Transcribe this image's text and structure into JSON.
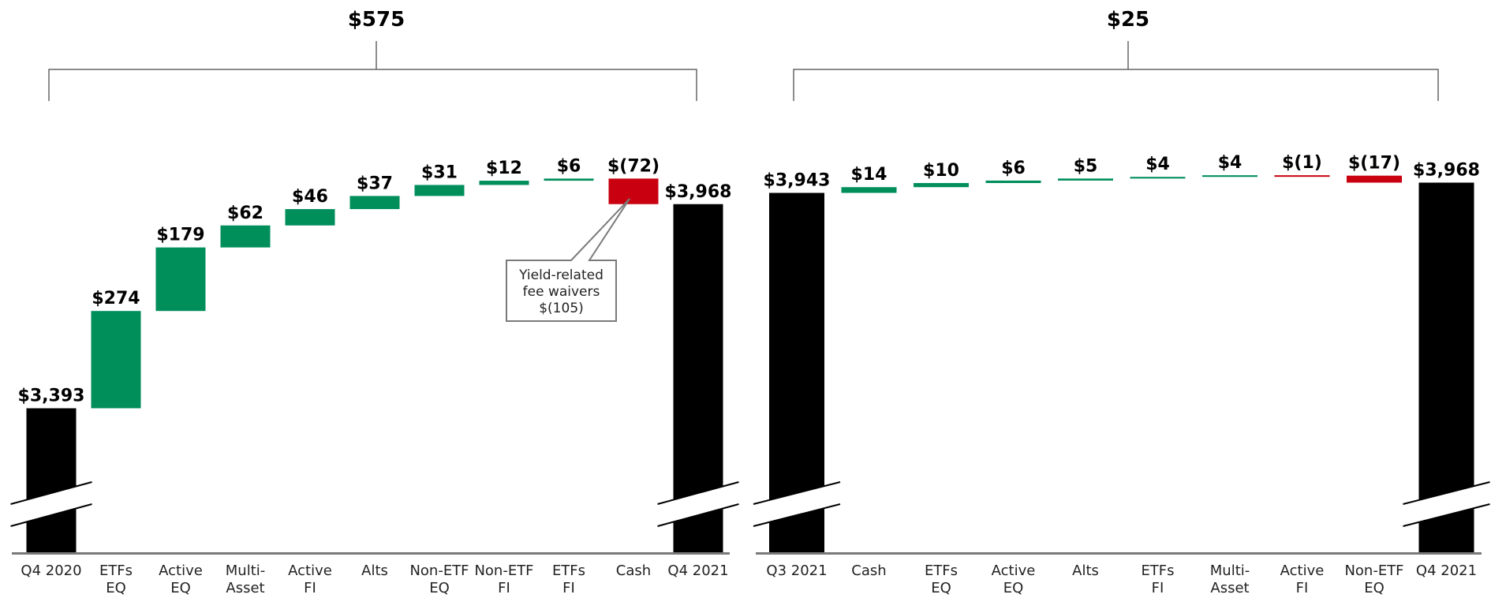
{
  "colors": {
    "positive": "#008e5b",
    "negative": "#c8000f",
    "total": "#000000",
    "axis": "#7a7a7a",
    "bracket": "#666666"
  },
  "chart_data": [
    {
      "type": "waterfall",
      "total_change_label": "$575",
      "items": [
        {
          "category": [
            "Q4 2020"
          ],
          "kind": "total",
          "value": 3393,
          "label": "$3,393",
          "axis_break": true
        },
        {
          "category": [
            "ETFs",
            "EQ"
          ],
          "kind": "delta",
          "value": 274,
          "label": "$274"
        },
        {
          "category": [
            "Active",
            "EQ"
          ],
          "kind": "delta",
          "value": 179,
          "label": "$179"
        },
        {
          "category": [
            "Multi-",
            "Asset"
          ],
          "kind": "delta",
          "value": 62,
          "label": "$62"
        },
        {
          "category": [
            "Active",
            "FI"
          ],
          "kind": "delta",
          "value": 46,
          "label": "$46"
        },
        {
          "category": [
            "Alts"
          ],
          "kind": "delta",
          "value": 37,
          "label": "$37"
        },
        {
          "category": [
            "Non-ETF",
            "EQ"
          ],
          "kind": "delta",
          "value": 31,
          "label": "$31"
        },
        {
          "category": [
            "Non-ETF",
            "FI"
          ],
          "kind": "delta",
          "value": 12,
          "label": "$12"
        },
        {
          "category": [
            "ETFs",
            "FI"
          ],
          "kind": "delta",
          "value": 6,
          "label": "$6"
        },
        {
          "category": [
            "Cash"
          ],
          "kind": "delta",
          "value": -72,
          "label": "$(72)"
        },
        {
          "category": [
            "Q4 2021"
          ],
          "kind": "total",
          "value": 3968,
          "label": "$3,968",
          "axis_break": true
        }
      ],
      "callout": {
        "target_category": "Cash",
        "lines": [
          "Yield-related",
          "fee waivers",
          "$(105)"
        ]
      }
    },
    {
      "type": "waterfall",
      "total_change_label": "$25",
      "items": [
        {
          "category": [
            "Q3 2021"
          ],
          "kind": "total",
          "value": 3943,
          "label": "$3,943",
          "axis_break": true
        },
        {
          "category": [
            "Cash"
          ],
          "kind": "delta",
          "value": 14,
          "label": "$14"
        },
        {
          "category": [
            "ETFs",
            "EQ"
          ],
          "kind": "delta",
          "value": 10,
          "label": "$10"
        },
        {
          "category": [
            "Active",
            "EQ"
          ],
          "kind": "delta",
          "value": 6,
          "label": "$6"
        },
        {
          "category": [
            "Alts"
          ],
          "kind": "delta",
          "value": 5,
          "label": "$5"
        },
        {
          "category": [
            "ETFs",
            "FI"
          ],
          "kind": "delta",
          "value": 4,
          "label": "$4"
        },
        {
          "category": [
            "Multi-",
            "Asset"
          ],
          "kind": "delta",
          "value": 4,
          "label": "$4"
        },
        {
          "category": [
            "Active",
            "FI"
          ],
          "kind": "delta",
          "value": -1,
          "label": "$(1)"
        },
        {
          "category": [
            "Non-ETF",
            "EQ"
          ],
          "kind": "delta",
          "value": -17,
          "label": "$(17)"
        },
        {
          "category": [
            "Q4 2021"
          ],
          "kind": "total",
          "value": 3968,
          "label": "$3,968",
          "axis_break": true
        }
      ]
    }
  ]
}
